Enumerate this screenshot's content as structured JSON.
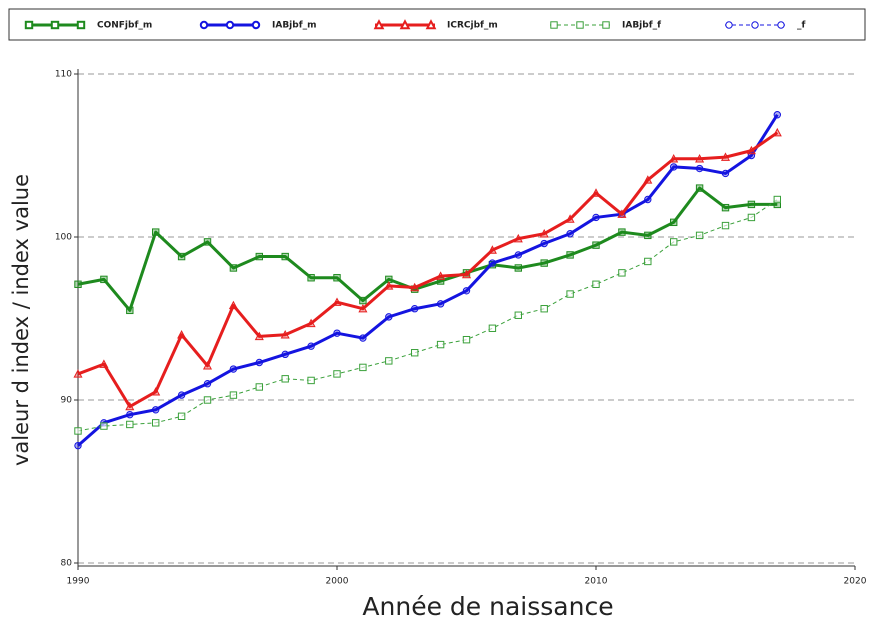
{
  "chart_data": {
    "type": "line",
    "xlabel": "Année de naissance",
    "ylabel": "valeur d index / index value",
    "x": [
      1990,
      1991,
      1992,
      1993,
      1994,
      1995,
      1996,
      1997,
      1998,
      1999,
      2000,
      2001,
      2002,
      2003,
      2004,
      2005,
      2006,
      2007,
      2008,
      2009,
      2010,
      2011,
      2012,
      2013,
      2014,
      2015,
      2016,
      2017
    ],
    "xlim": [
      1990,
      2020
    ],
    "xticks": [
      1990,
      2000,
      2010,
      2020
    ],
    "ylim": [
      80,
      110
    ],
    "yticks": [
      80,
      90,
      100,
      110
    ],
    "grid": true,
    "series": [
      {
        "name": "CONFjbf_m",
        "color": "#1e8a1e",
        "marker": "square",
        "dashed": false,
        "line_width": 3,
        "values": [
          97.1,
          97.4,
          95.5,
          100.3,
          98.8,
          99.7,
          98.1,
          98.8,
          98.8,
          97.5,
          97.5,
          96.1,
          97.4,
          96.8,
          97.3,
          97.8,
          98.3,
          98.1,
          98.4,
          98.9,
          99.5,
          100.3,
          100.1,
          100.9,
          103.0,
          101.8,
          102.0,
          102.0
        ]
      },
      {
        "name": "IABjbf_m",
        "color": "#1414e0",
        "marker": "circle",
        "dashed": false,
        "line_width": 3,
        "values": [
          87.2,
          88.6,
          89.1,
          89.4,
          90.3,
          91.0,
          91.9,
          92.3,
          92.8,
          93.3,
          94.1,
          93.8,
          95.1,
          95.6,
          95.9,
          96.7,
          98.4,
          98.9,
          99.6,
          100.2,
          101.2,
          101.4,
          102.3,
          104.3,
          104.2,
          103.9,
          105.0,
          107.5
        ]
      },
      {
        "name": "ICRCjbf_m",
        "color": "#e61e1e",
        "marker": "triangle",
        "dashed": false,
        "line_width": 3,
        "values": [
          91.6,
          92.2,
          89.6,
          90.5,
          94.0,
          92.1,
          95.8,
          93.9,
          94.0,
          94.7,
          96.0,
          95.6,
          97.0,
          96.9,
          97.6,
          97.7,
          99.2,
          99.9,
          100.2,
          101.1,
          102.7,
          101.4,
          103.5,
          104.8,
          104.8,
          104.9,
          105.3,
          106.4
        ]
      },
      {
        "name": "IABjbf_f",
        "color": "#3aa03a",
        "marker": "square",
        "dashed": true,
        "line_width": 1,
        "values": [
          88.1,
          88.4,
          88.5,
          88.6,
          89.0,
          90.0,
          90.3,
          90.8,
          91.3,
          91.2,
          91.6,
          92.0,
          92.4,
          92.9,
          93.4,
          93.7,
          94.4,
          95.2,
          95.6,
          96.5,
          97.1,
          97.8,
          98.5,
          99.7,
          100.1,
          100.7,
          101.2,
          102.3
        ]
      },
      {
        "name": "_f",
        "color": "#1414e0",
        "marker": "circle",
        "dashed": true,
        "line_width": 1,
        "values": [
          null,
          null,
          null,
          null,
          null,
          null,
          null,
          null,
          null,
          null,
          null,
          null,
          null,
          null,
          null,
          null,
          null,
          null,
          null,
          null,
          null,
          null,
          null,
          null,
          null,
          null,
          null,
          null
        ]
      }
    ]
  }
}
